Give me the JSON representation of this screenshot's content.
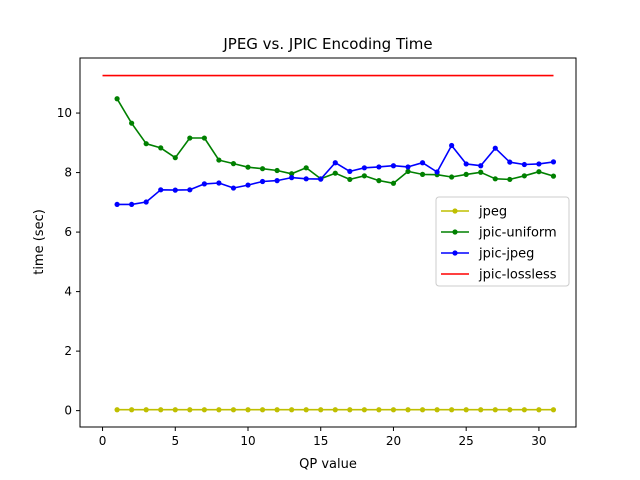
{
  "chart_data": {
    "type": "line",
    "title": "JPEG vs. JPIC Encoding Time",
    "xlabel": "QP value",
    "ylabel": "time (sec)",
    "xlim": [
      -1.55,
      32.55
    ],
    "ylim": [
      -0.55,
      11.85
    ],
    "xticks": [
      0,
      5,
      10,
      15,
      20,
      25,
      30
    ],
    "yticks": [
      0,
      2,
      4,
      6,
      8,
      10
    ],
    "legend_position": "center-right",
    "series": [
      {
        "name": "jpeg",
        "color": "#bfbf00",
        "marker": true,
        "x": [
          1,
          2,
          3,
          4,
          5,
          6,
          7,
          8,
          9,
          10,
          11,
          12,
          13,
          14,
          15,
          16,
          17,
          18,
          19,
          20,
          21,
          22,
          23,
          24,
          25,
          26,
          27,
          28,
          29,
          30,
          31
        ],
        "y": [
          0.03,
          0.03,
          0.03,
          0.03,
          0.03,
          0.03,
          0.03,
          0.03,
          0.03,
          0.03,
          0.03,
          0.03,
          0.03,
          0.03,
          0.03,
          0.03,
          0.03,
          0.03,
          0.03,
          0.03,
          0.03,
          0.03,
          0.03,
          0.03,
          0.03,
          0.03,
          0.03,
          0.03,
          0.03,
          0.03,
          0.03
        ]
      },
      {
        "name": "jpic-uniform",
        "color": "#008000",
        "marker": true,
        "x": [
          1,
          2,
          3,
          4,
          5,
          6,
          7,
          8,
          9,
          10,
          11,
          12,
          13,
          14,
          15,
          16,
          17,
          18,
          19,
          20,
          21,
          22,
          23,
          24,
          25,
          26,
          27,
          28,
          29,
          30,
          31
        ],
        "y": [
          10.48,
          9.66,
          8.97,
          8.83,
          8.5,
          9.16,
          9.16,
          8.42,
          8.3,
          8.18,
          8.13,
          8.07,
          7.96,
          8.16,
          7.79,
          7.98,
          7.77,
          7.89,
          7.73,
          7.64,
          8.04,
          7.94,
          7.93,
          7.85,
          7.94,
          8.01,
          7.79,
          7.77,
          7.89,
          8.03,
          7.88
        ]
      },
      {
        "name": "jpic-jpeg",
        "color": "#0000ff",
        "marker": true,
        "x": [
          1,
          2,
          3,
          4,
          5,
          6,
          7,
          8,
          9,
          10,
          11,
          12,
          13,
          14,
          15,
          16,
          17,
          18,
          19,
          20,
          21,
          22,
          23,
          24,
          25,
          26,
          27,
          28,
          29,
          30,
          31
        ],
        "y": [
          6.93,
          6.93,
          7.01,
          7.42,
          7.41,
          7.42,
          7.62,
          7.65,
          7.48,
          7.58,
          7.7,
          7.73,
          7.83,
          7.79,
          7.78,
          8.33,
          8.04,
          8.16,
          8.19,
          8.23,
          8.19,
          8.33,
          8.02,
          8.91,
          8.29,
          8.23,
          8.82,
          8.35,
          8.27,
          8.29,
          8.36
        ]
      },
      {
        "name": "jpic-lossless",
        "color": "#ff0000",
        "marker": false,
        "x": [
          0,
          31
        ],
        "y": [
          11.26,
          11.26
        ]
      }
    ]
  }
}
